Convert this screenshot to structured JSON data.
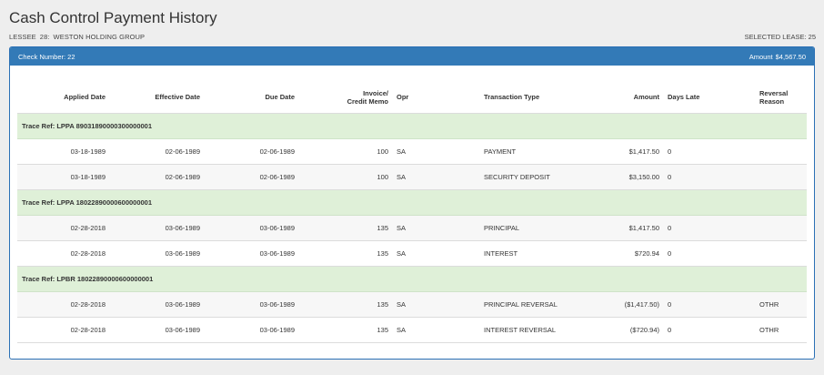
{
  "page": {
    "title": "Cash Control Payment History",
    "lessee_label": "LESSEE",
    "lessee_number": "28:",
    "lessee_name": "WESTON HOLDING GROUP",
    "selected_lease": "SELECTED LEASE: 25"
  },
  "panel": {
    "check_label": "Check Number: 22",
    "amount_label": "Amount",
    "amount_value": "$4,567.50"
  },
  "table": {
    "headers": {
      "applied_date": "Applied Date",
      "effective_date": "Effective Date",
      "due_date": "Due Date",
      "invoice_line1": "Invoice/",
      "invoice_line2": "Credit Memo",
      "opr": "Opr",
      "transaction_type": "Transaction Type",
      "amount": "Amount",
      "days_late": "Days Late",
      "reversal_reason": "Reversal Reason"
    },
    "groups": [
      {
        "trace": "Trace Ref: LPPA 89031890000300000001",
        "rows": [
          {
            "applied": "03-18-1989",
            "effective": "02-06-1989",
            "due": "02-06-1989",
            "invoice": "100",
            "opr": "SA",
            "type": "PAYMENT",
            "amount": "$1,417.50",
            "days_late": "0",
            "reversal": ""
          },
          {
            "applied": "03-18-1989",
            "effective": "02-06-1989",
            "due": "02-06-1989",
            "invoice": "100",
            "opr": "SA",
            "type": "SECURITY DEPOSIT",
            "amount": "$3,150.00",
            "days_late": "0",
            "reversal": ""
          }
        ]
      },
      {
        "trace": "Trace Ref: LPPA 18022890000600000001",
        "rows": [
          {
            "applied": "02-28-2018",
            "effective": "03-06-1989",
            "due": "03-06-1989",
            "invoice": "135",
            "opr": "SA",
            "type": "PRINCIPAL",
            "amount": "$1,417.50",
            "days_late": "0",
            "reversal": ""
          },
          {
            "applied": "02-28-2018",
            "effective": "03-06-1989",
            "due": "03-06-1989",
            "invoice": "135",
            "opr": "SA",
            "type": "INTEREST",
            "amount": "$720.94",
            "days_late": "0",
            "reversal": ""
          }
        ]
      },
      {
        "trace": "Trace Ref: LPBR 18022890000600000001",
        "rows": [
          {
            "applied": "02-28-2018",
            "effective": "03-06-1989",
            "due": "03-06-1989",
            "invoice": "135",
            "opr": "SA",
            "type": "PRINCIPAL REVERSAL",
            "amount": "($1,417.50)",
            "days_late": "0",
            "reversal": "OTHR"
          },
          {
            "applied": "02-28-2018",
            "effective": "03-06-1989",
            "due": "03-06-1989",
            "invoice": "135",
            "opr": "SA",
            "type": "INTEREST REVERSAL",
            "amount": "($720.94)",
            "days_late": "0",
            "reversal": "OTHR"
          }
        ]
      }
    ]
  }
}
